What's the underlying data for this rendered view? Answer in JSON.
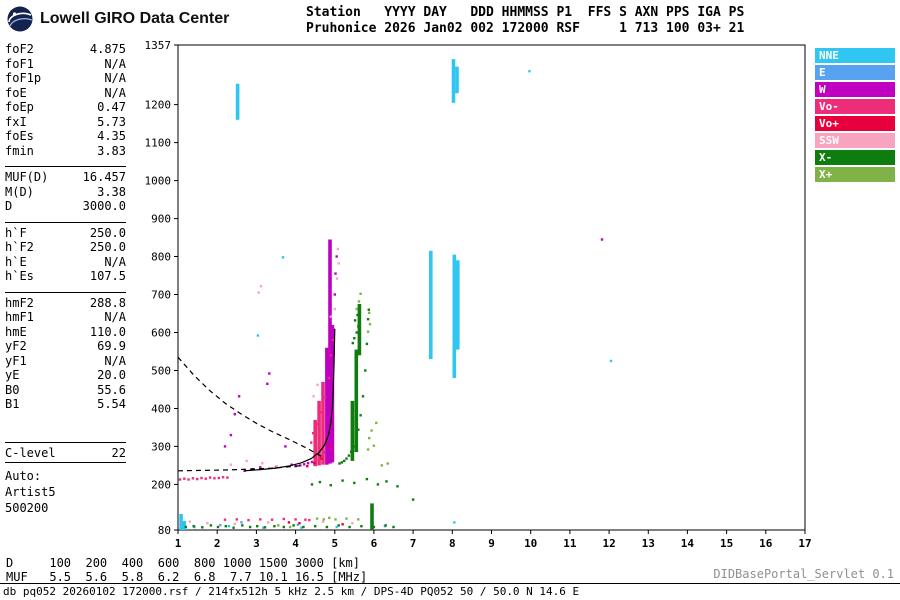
{
  "header": {
    "logo_text": "Lowell GIRO Data Center",
    "station_line1": "Station   YYYY DAY   DDD HHMMSS P1  FFS S AXN PPS IGA PS",
    "station_line2": "Pruhonice 2026 Jan02 002 172000 RSF     1 713 100 03+ 21"
  },
  "parameters": {
    "groups": [
      [
        {
          "label": "foF2",
          "value": "4.875"
        },
        {
          "label": "foF1",
          "value": "N/A"
        },
        {
          "label": "foF1p",
          "value": "N/A"
        },
        {
          "label": "foE",
          "value": "N/A"
        },
        {
          "label": "foEp",
          "value": "0.47"
        },
        {
          "label": "fxI",
          "value": "5.73"
        },
        {
          "label": "foEs",
          "value": "4.35"
        },
        {
          "label": "fmin",
          "value": "3.83"
        }
      ],
      [
        {
          "label": "MUF(D)",
          "value": "16.457"
        },
        {
          "label": "M(D)",
          "value": "3.38"
        },
        {
          "label": "D",
          "value": "3000.0"
        }
      ],
      [
        {
          "label": "h`F",
          "value": "250.0"
        },
        {
          "label": "h`F2",
          "value": "250.0"
        },
        {
          "label": "h`E",
          "value": "N/A"
        },
        {
          "label": "h`Es",
          "value": "107.5"
        }
      ],
      [
        {
          "label": "hmF2",
          "value": "288.8"
        },
        {
          "label": "hmF1",
          "value": "N/A"
        },
        {
          "label": "hmE",
          "value": "110.0"
        },
        {
          "label": "yF2",
          "value": "69.9"
        },
        {
          "label": "yF1",
          "value": "N/A"
        },
        {
          "label": "yE",
          "value": "20.0"
        },
        {
          "label": "B0",
          "value": "55.6"
        },
        {
          "label": "B1",
          "value": "5.54"
        }
      ],
      [
        {
          "label": "C-level",
          "value": "22"
        }
      ]
    ],
    "auto": [
      "Auto:",
      "Artist5",
      "500200"
    ]
  },
  "legend": [
    {
      "label": "NNE",
      "color": "#2FC7F2"
    },
    {
      "label": "E",
      "color": "#57A3F0"
    },
    {
      "label": "W",
      "color": "#C000C0"
    },
    {
      "label": "Vo-",
      "color": "#EE2D7A"
    },
    {
      "label": "Vo+",
      "color": "#E8003C"
    },
    {
      "label": "SSW",
      "color": "#F8A4C0"
    },
    {
      "label": "X-",
      "color": "#0E7C0E"
    },
    {
      "label": "X+",
      "color": "#7FB347"
    }
  ],
  "chart_data": {
    "type": "scatter",
    "title": "",
    "xlabel": "[MHz]",
    "ylabel": "[km]",
    "xlim": [
      1,
      17
    ],
    "ylim": [
      80,
      1357
    ],
    "x_ticks": [
      1,
      2,
      3,
      4,
      5,
      6,
      7,
      8,
      9,
      10,
      11,
      12,
      13,
      14,
      15,
      16,
      17
    ],
    "y_ticks": [
      80,
      200,
      300,
      400,
      500,
      600,
      700,
      800,
      900,
      1000,
      1100,
      1200,
      1357
    ],
    "grid": false,
    "legend_position": "right",
    "series": [
      {
        "name": "NNE",
        "color": "#2FC7F2",
        "points": [
          [
            3.04,
            592
          ],
          [
            3.68,
            798
          ],
          [
            9.97,
            1288
          ],
          [
            8.05,
            100
          ],
          [
            2.3,
            90
          ],
          [
            12.05,
            525
          ],
          [
            4.15,
            86
          ],
          [
            5.05,
            88
          ]
        ],
        "segments": [
          [
            1.08,
            80,
            122
          ],
          [
            1.16,
            80,
            104
          ],
          [
            2.52,
            1160,
            1255
          ],
          [
            7.45,
            530,
            815
          ],
          [
            8.03,
            1205,
            1320
          ],
          [
            8.12,
            1230,
            1300
          ],
          [
            8.05,
            480,
            805
          ],
          [
            8.14,
            555,
            790
          ]
        ]
      },
      {
        "name": "E",
        "color": "#57A3F0",
        "points": [
          [
            1.12,
            96
          ],
          [
            1.42,
            88
          ],
          [
            2.08,
            93
          ],
          [
            2.62,
            100
          ],
          [
            3.18,
            86
          ],
          [
            4.06,
            94
          ],
          [
            6.28,
            90
          ]
        ],
        "segments": []
      },
      {
        "name": "W",
        "color": "#C000C0",
        "points": [
          [
            2.2,
            300
          ],
          [
            2.35,
            330
          ],
          [
            2.45,
            385
          ],
          [
            2.56,
            432
          ],
          [
            2.7,
            236
          ],
          [
            2.9,
            240
          ],
          [
            3.1,
            245
          ],
          [
            3.28,
            465
          ],
          [
            3.33,
            492
          ],
          [
            3.5,
            246
          ],
          [
            3.74,
            300
          ],
          [
            3.9,
            252
          ],
          [
            4.0,
            248
          ],
          [
            4.12,
            250
          ],
          [
            4.22,
            253
          ],
          [
            4.32,
            256
          ],
          [
            4.42,
            259
          ],
          [
            4.52,
            263
          ],
          [
            4.62,
            272
          ],
          [
            4.72,
            284
          ],
          [
            5.0,
            700
          ],
          [
            5.02,
            755
          ],
          [
            5.05,
            800
          ],
          [
            11.82,
            845
          ]
        ],
        "segments": [
          [
            4.88,
            255,
            845
          ],
          [
            4.94,
            258,
            620
          ],
          [
            4.8,
            252,
            560
          ]
        ]
      },
      {
        "name": "Vo-",
        "color": "#EE2D7A",
        "points": [
          [
            1.05,
            213
          ],
          [
            1.16,
            215
          ],
          [
            1.27,
            213
          ],
          [
            1.38,
            216
          ],
          [
            1.49,
            214
          ],
          [
            1.6,
            217
          ],
          [
            1.71,
            215
          ],
          [
            1.82,
            218
          ],
          [
            1.93,
            216
          ],
          [
            2.04,
            217
          ],
          [
            2.15,
            219
          ],
          [
            2.26,
            218
          ],
          [
            2.2,
            107
          ],
          [
            2.5,
            108
          ],
          [
            2.8,
            106
          ],
          [
            3.1,
            108
          ],
          [
            3.4,
            107
          ],
          [
            3.7,
            109
          ],
          [
            4.0,
            108
          ],
          [
            4.25,
            107
          ],
          [
            4.35,
            106
          ],
          [
            4.4,
            310
          ],
          [
            4.45,
            335
          ],
          [
            4.55,
            360
          ],
          [
            4.65,
            390
          ],
          [
            4.75,
            430
          ],
          [
            4.85,
            480
          ],
          [
            4.9,
            540
          ],
          [
            4.95,
            580
          ]
        ],
        "segments": [
          [
            4.7,
            252,
            470
          ],
          [
            4.6,
            250,
            420
          ],
          [
            4.5,
            248,
            370
          ]
        ]
      },
      {
        "name": "Vo+",
        "color": "#E8003C",
        "points": [
          [
            4.3,
            248
          ],
          [
            4.48,
            256
          ],
          [
            4.66,
            268
          ],
          [
            4.84,
            300
          ],
          [
            4.92,
            360
          ],
          [
            3.83,
            100
          ],
          [
            4.1,
            98
          ],
          [
            5.2,
            95
          ]
        ],
        "segments": []
      },
      {
        "name": "SSW",
        "color": "#F8A4C0",
        "points": [
          [
            2.35,
            252
          ],
          [
            2.75,
            262
          ],
          [
            3.15,
            256
          ],
          [
            3.52,
            248
          ],
          [
            4.46,
            432
          ],
          [
            4.56,
            462
          ],
          [
            4.9,
            642
          ],
          [
            5.0,
            662
          ],
          [
            5.06,
            742
          ],
          [
            5.1,
            782
          ],
          [
            5.08,
            820
          ],
          [
            3.06,
            705
          ],
          [
            3.12,
            722
          ],
          [
            1.3,
            102
          ],
          [
            1.75,
            98
          ],
          [
            2.45,
            96
          ],
          [
            3.3,
            100
          ],
          [
            4.7,
            102
          ],
          [
            5.45,
            98
          ]
        ],
        "segments": []
      },
      {
        "name": "X-",
        "color": "#0E7C0E",
        "points": [
          [
            1.2,
            88
          ],
          [
            1.4,
            90
          ],
          [
            1.62,
            87
          ],
          [
            1.84,
            92
          ],
          [
            2.02,
            88
          ],
          [
            2.22,
            90
          ],
          [
            2.42,
            86
          ],
          [
            2.64,
            92
          ],
          [
            2.84,
            88
          ],
          [
            3.02,
            90
          ],
          [
            3.22,
            87
          ],
          [
            3.46,
            90
          ],
          [
            3.7,
            88
          ],
          [
            3.95,
            92
          ],
          [
            4.2,
            88
          ],
          [
            4.5,
            90
          ],
          [
            4.8,
            88
          ],
          [
            5.1,
            92
          ],
          [
            5.38,
            88
          ],
          [
            5.68,
            90
          ],
          [
            6.0,
            88
          ],
          [
            6.3,
            92
          ],
          [
            6.5,
            88
          ],
          [
            4.42,
            200
          ],
          [
            4.62,
            206
          ],
          [
            4.9,
            198
          ],
          [
            5.2,
            210
          ],
          [
            5.5,
            204
          ],
          [
            5.82,
            214
          ],
          [
            6.1,
            200
          ],
          [
            6.32,
            208
          ],
          [
            6.6,
            195
          ],
          [
            7.0,
            160
          ],
          [
            5.12,
            255
          ],
          [
            5.18,
            258
          ],
          [
            5.24,
            262
          ],
          [
            5.3,
            268
          ],
          [
            5.36,
            276
          ],
          [
            5.42,
            286
          ],
          [
            5.48,
            300
          ],
          [
            5.54,
            318
          ],
          [
            5.6,
            344
          ],
          [
            5.66,
            382
          ],
          [
            5.72,
            432
          ],
          [
            5.78,
            500
          ],
          [
            5.82,
            570
          ],
          [
            5.85,
            635
          ],
          [
            5.87,
            660
          ],
          [
            5.5,
            585
          ],
          [
            5.56,
            600
          ],
          [
            5.6,
            616
          ],
          [
            5.52,
            632
          ],
          [
            5.58,
            646
          ],
          [
            5.46,
            572
          ]
        ],
        "segments": [
          [
            5.55,
            285,
            555
          ],
          [
            5.63,
            540,
            675
          ],
          [
            5.95,
            80,
            150
          ],
          [
            5.45,
            262,
            420
          ]
        ]
      },
      {
        "name": "X+",
        "color": "#7FB347",
        "points": [
          [
            4.55,
            110
          ],
          [
            4.72,
            108
          ],
          [
            4.86,
            112
          ],
          [
            5.02,
            108
          ],
          [
            5.3,
            110
          ],
          [
            5.6,
            108
          ],
          [
            3.56,
            92
          ],
          [
            3.86,
            88
          ],
          [
            5.88,
            322
          ],
          [
            5.94,
            342
          ],
          [
            6.0,
            302
          ],
          [
            5.85,
            292
          ],
          [
            6.06,
            362
          ],
          [
            5.56,
            662
          ],
          [
            5.62,
            682
          ],
          [
            5.66,
            702
          ],
          [
            5.85,
            602
          ],
          [
            5.9,
            622
          ],
          [
            5.88,
            652
          ],
          [
            6.2,
            250
          ],
          [
            6.35,
            255
          ]
        ],
        "segments": []
      }
    ],
    "curves": [
      {
        "name": "o-trace-fit",
        "style": "solid",
        "points": [
          [
            2.7,
            236
          ],
          [
            3.1,
            239
          ],
          [
            3.5,
            243
          ],
          [
            3.85,
            249
          ],
          [
            4.15,
            257
          ],
          [
            4.4,
            268
          ],
          [
            4.6,
            284
          ],
          [
            4.74,
            304
          ],
          [
            4.84,
            330
          ],
          [
            4.9,
            362
          ],
          [
            4.94,
            402
          ],
          [
            4.96,
            452
          ],
          [
            4.98,
            512
          ],
          [
            4.99,
            562
          ],
          [
            5.0,
            610
          ]
        ]
      },
      {
        "name": "muf-transmission",
        "style": "dashed",
        "points": [
          [
            1.0,
            535
          ],
          [
            1.4,
            488
          ],
          [
            1.8,
            448
          ],
          [
            2.2,
            414
          ],
          [
            2.6,
            386
          ],
          [
            3.0,
            361
          ],
          [
            3.4,
            339
          ],
          [
            3.8,
            320
          ],
          [
            4.1,
            305
          ],
          [
            4.35,
            292
          ],
          [
            4.55,
            280
          ],
          [
            4.7,
            272
          ]
        ]
      },
      {
        "name": "baseline",
        "style": "dashed",
        "points": [
          [
            1.0,
            236
          ],
          [
            1.6,
            237
          ],
          [
            2.2,
            238
          ],
          [
            2.8,
            240
          ],
          [
            3.4,
            243
          ],
          [
            3.9,
            247
          ],
          [
            4.2,
            250
          ]
        ]
      }
    ]
  },
  "muf_table": {
    "d_label": "D",
    "muf_label": "MUF",
    "d_values": [
      100,
      200,
      400,
      600,
      800,
      1000,
      1500,
      3000
    ],
    "muf_values": [
      5.5,
      5.6,
      5.8,
      6.2,
      6.8,
      7.7,
      10.1,
      16.5
    ],
    "d_unit": "[km]",
    "muf_unit": "[MHz]",
    "row1": "D     100  200  400  600  800 1000 1500 3000 [km]",
    "row2": "MUF   5.5  5.6  5.8  6.2  6.8  7.7 10.1 16.5 [MHz]"
  },
  "footer": {
    "servlet": "DIDBasePortal_Servlet 0.1",
    "status": "db pq052 20260102 172000.rsf / 214fx512h 5 kHz 2.5 km / DPS-4D PQ052 50 / 50.0 N 14.6 E"
  }
}
